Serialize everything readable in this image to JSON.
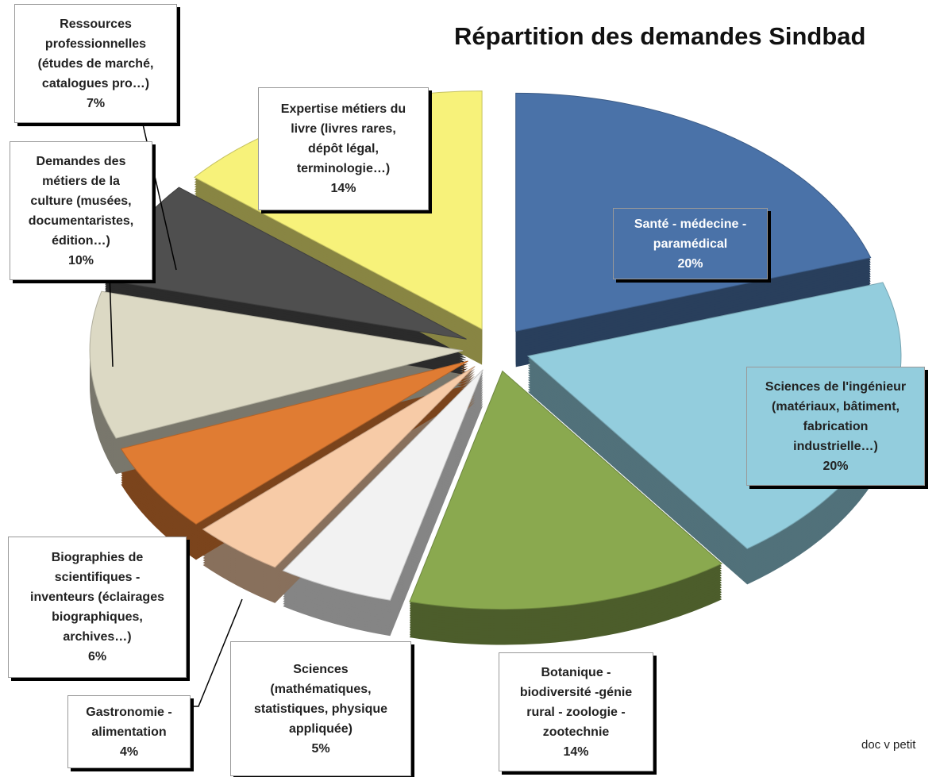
{
  "chart_data": {
    "type": "pie",
    "title": "Répartition des demandes Sindbad",
    "source": "doc v petit",
    "categories": [
      "Santé - médecine -\nparamédical",
      "Sciences de l'ingénieur\n(matériaux, bâtiment,\nfabrication\nindustrielle…)",
      "Botanique -\nbiodiversité -génie\nrural -  zoologie -\nzootechnie",
      "Sciences\n(mathématiques,\nstatistiques, physique\nappliquée)",
      "Gastronomie -\nalimentation",
      "Biographies de\nscientifiques -\ninventeurs (éclairages\nbiographiques,\narchives…)",
      "Demandes des\nmétiers de la\nculture (musées,\ndocumentaristes,\nédition…)",
      "Ressources\nprofessionnelles\n(études de marché,\ncatalogues pro…)",
      "Expertise métiers du\nlivre (livres rares,\ndépôt légal,\nterminologie…)"
    ],
    "values": [
      20,
      20,
      14,
      5,
      4,
      6,
      10,
      7,
      14
    ],
    "value_labels": [
      "20%",
      "20%",
      "14%",
      "5%",
      "4%",
      "6%",
      "10%",
      "7%",
      "14%"
    ],
    "colors": [
      "#4a72a8",
      "#93cddd",
      "#8aa94f",
      "#f2f2f2",
      "#f7cba7",
      "#e07c33",
      "#dcd9c4",
      "#4f4f4f",
      "#f7f27a"
    ]
  }
}
